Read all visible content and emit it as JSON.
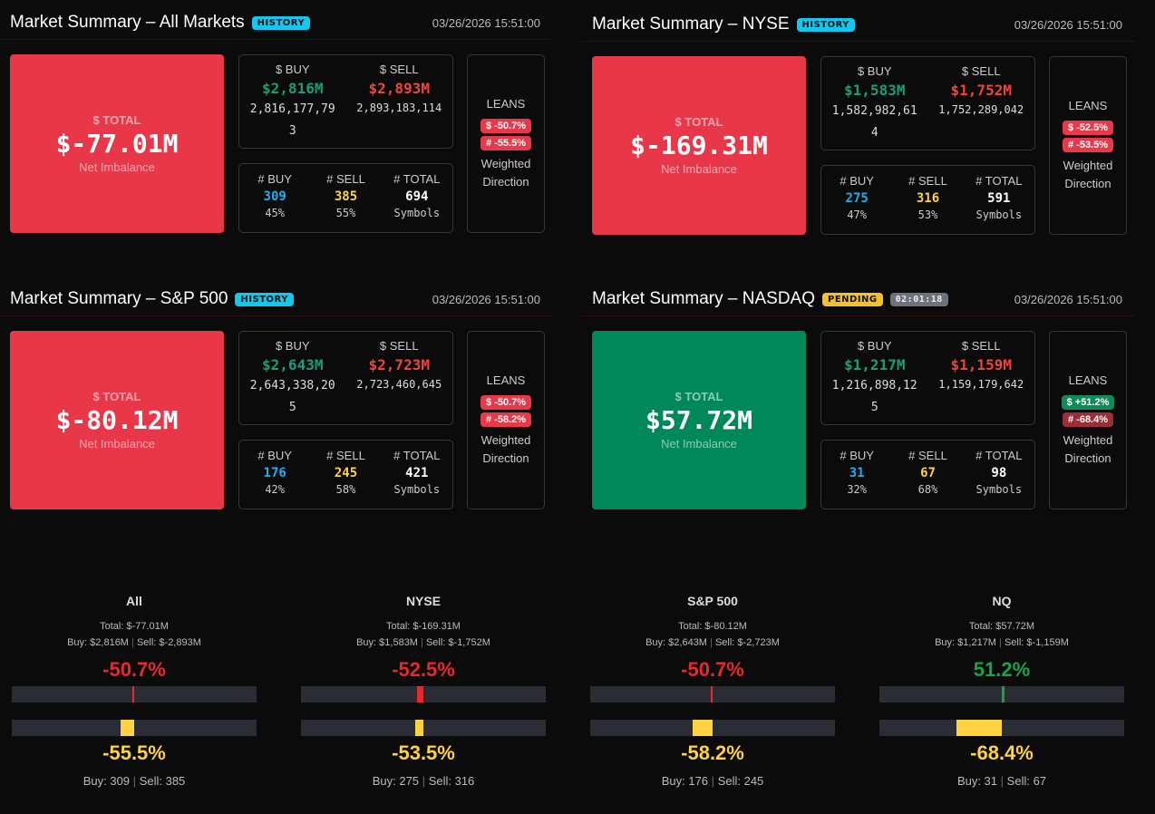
{
  "panels": [
    {
      "title": "Market Summary – All Markets",
      "badge": "HISTORY",
      "timer": null,
      "timestamp": "03/26/2026 15:51:00",
      "total_label": "$ TOTAL",
      "total": "$-77.01M",
      "total_sub": "Net Imbalance",
      "sign": "neg",
      "buy_label": "$ BUY",
      "sell_label": "$ SELL",
      "buy": "$2,816M",
      "sell": "$2,893M",
      "buy_raw": "2,816,177,793",
      "sell_raw": "2,893,183,114",
      "cbuy_label": "# BUY",
      "csell_label": "# SELL",
      "ctotal_label": "# TOTAL",
      "cbuy": "309",
      "csell": "385",
      "ctotal": "694",
      "cbuy_pct": "45%",
      "csell_pct": "55%",
      "symbols": "Symbols",
      "leans": "LEANS",
      "lean_dollar": "$ -50.7%",
      "lean_count": "# -55.5%",
      "lean_dollar_color": "#e8394a",
      "lean_count_color": "#e8394a",
      "weighted": "Weighted Direction"
    },
    {
      "title": "Market Summary – NYSE",
      "badge": "HISTORY",
      "timer": null,
      "timestamp": "03/26/2026 15:51:00",
      "total_label": "$ TOTAL",
      "total": "$-169.31M",
      "total_sub": "Net Imbalance",
      "sign": "neg",
      "buy_label": "$ BUY",
      "sell_label": "$ SELL",
      "buy": "$1,583M",
      "sell": "$1,752M",
      "buy_raw": "1,582,982,614",
      "sell_raw": "1,752,289,042",
      "cbuy_label": "# BUY",
      "csell_label": "# SELL",
      "ctotal_label": "# TOTAL",
      "cbuy": "275",
      "csell": "316",
      "ctotal": "591",
      "cbuy_pct": "47%",
      "csell_pct": "53%",
      "symbols": "Symbols",
      "leans": "LEANS",
      "lean_dollar": "$ -52.5%",
      "lean_count": "# -53.5%",
      "lean_dollar_color": "#e8394a",
      "lean_count_color": "#e8394a",
      "weighted": "Weighted Direction"
    },
    {
      "title": "Market Summary – S&P 500",
      "badge": "HISTORY",
      "timer": null,
      "timestamp": "03/26/2026 15:51:00",
      "total_label": "$ TOTAL",
      "total": "$-80.12M",
      "total_sub": "Net Imbalance",
      "sign": "neg",
      "buy_label": "$ BUY",
      "sell_label": "$ SELL",
      "buy": "$2,643M",
      "sell": "$2,723M",
      "buy_raw": "2,643,338,205",
      "sell_raw": "2,723,460,645",
      "cbuy_label": "# BUY",
      "csell_label": "# SELL",
      "ctotal_label": "# TOTAL",
      "cbuy": "176",
      "csell": "245",
      "ctotal": "421",
      "cbuy_pct": "42%",
      "csell_pct": "58%",
      "symbols": "Symbols",
      "leans": "LEANS",
      "lean_dollar": "$ -50.7%",
      "lean_count": "# -58.2%",
      "lean_dollar_color": "#e8394a",
      "lean_count_color": "#e8394a",
      "weighted": "Weighted Direction"
    },
    {
      "title": "Market Summary – NASDAQ",
      "badge": "PENDING",
      "timer": "02:01:18",
      "timestamp": "03/26/2026 15:51:00",
      "total_label": "$ TOTAL",
      "total": "$57.72M",
      "total_sub": "Net Imbalance",
      "sign": "pos",
      "buy_label": "$ BUY",
      "sell_label": "$ SELL",
      "buy": "$1,217M",
      "sell": "$1,159M",
      "buy_raw": "1,216,898,125",
      "sell_raw": "1,159,179,642",
      "cbuy_label": "# BUY",
      "csell_label": "# SELL",
      "ctotal_label": "# TOTAL",
      "cbuy": "31",
      "csell": "67",
      "ctotal": "98",
      "cbuy_pct": "32%",
      "csell_pct": "68%",
      "symbols": "Symbols",
      "leans": "LEANS",
      "lean_dollar": "$ +51.2%",
      "lean_count": "# -68.4%",
      "lean_dollar_color": "#0f8a5a",
      "lean_count_color": "#9a2f38",
      "weighted": "Weighted Direction"
    }
  ],
  "summaries": [
    {
      "name": "All",
      "total": "Total: $-77.01M",
      "buy": "Buy: $2,816M",
      "sell": "Sell: $-2,893M",
      "dollar_pct": "-50.7%",
      "dollar_value": -50.7,
      "count_pct": "-55.5%",
      "count_value": -55.5,
      "cbuy": "Buy: 309",
      "csell": "Sell: 385"
    },
    {
      "name": "NYSE",
      "total": "Total: $-169.31M",
      "buy": "Buy: $1,583M",
      "sell": "Sell: $-1,752M",
      "dollar_pct": "-52.5%",
      "dollar_value": -52.5,
      "count_pct": "-53.5%",
      "count_value": -53.5,
      "cbuy": "Buy: 275",
      "csell": "Sell: 316"
    },
    {
      "name": "S&P 500",
      "total": "Total: $-80.12M",
      "buy": "Buy: $2,643M",
      "sell": "Sell: $-2,723M",
      "dollar_pct": "-50.7%",
      "dollar_value": -50.7,
      "count_pct": "-58.2%",
      "count_value": -58.2,
      "cbuy": "Buy: 176",
      "csell": "Sell: 245"
    },
    {
      "name": "NQ",
      "total": "Total: $57.72M",
      "buy": "Buy: $1,217M",
      "sell": "Sell: $-1,159M",
      "dollar_pct": "51.2%",
      "dollar_value": 51.2,
      "count_pct": "-68.4%",
      "count_value": -68.4,
      "cbuy": "Buy: 31",
      "csell": "Sell: 67"
    }
  ],
  "colors": {
    "neg": "#e8282c",
    "pos": "#16a34a",
    "count": "#ffd23f"
  },
  "separator": "|"
}
